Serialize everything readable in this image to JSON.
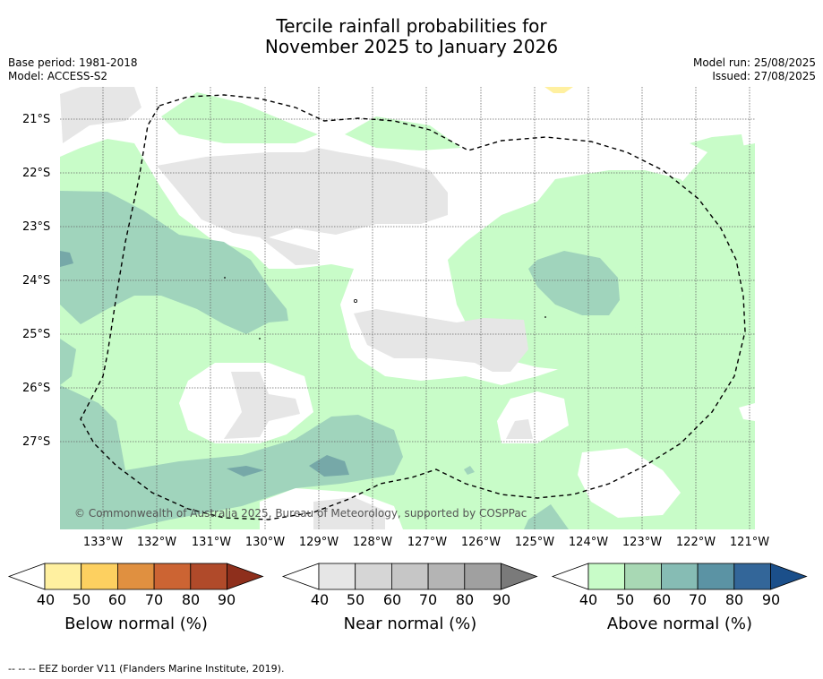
{
  "title_line1": "Tercile rainfall probabilities for",
  "title_line2": "November 2025 to January 2026",
  "meta_left": {
    "base_period": "Base period: 1981-2018",
    "model": "Model: ACCESS-S2"
  },
  "meta_right": {
    "model_run": "Model run: 25/08/2025",
    "issued": "Issued: 27/08/2025"
  },
  "latitude_labels": [
    "21°S",
    "22°S",
    "23°S",
    "24°S",
    "25°S",
    "26°S",
    "27°S"
  ],
  "longitude_labels": [
    "133°W",
    "132°W",
    "131°W",
    "130°W",
    "129°W",
    "128°W",
    "127°W",
    "126°W",
    "125°W",
    "124°W",
    "123°W",
    "122°W",
    "121°W"
  ],
  "copyright": "© Commonwealth of Australia 2025, Bureau of Meteorology, supported by COSPPac",
  "colorbars": [
    {
      "title": "Below normal (%)",
      "ticks": [
        "40",
        "50",
        "60",
        "70",
        "80",
        "90"
      ],
      "colors": [
        "#ffffff",
        "#fff0a0",
        "#fdd060",
        "#e09040",
        "#cc6433",
        "#b04a2a",
        "#8e2f1c"
      ]
    },
    {
      "title": "Near normal (%)",
      "ticks": [
        "40",
        "50",
        "60",
        "70",
        "80",
        "90"
      ],
      "colors": [
        "#ffffff",
        "#e6e6e6",
        "#d6d6d6",
        "#c6c6c6",
        "#b4b4b4",
        "#a0a0a0",
        "#7a7a7a"
      ]
    },
    {
      "title": "Above normal (%)",
      "ticks": [
        "40",
        "50",
        "60",
        "70",
        "80",
        "90"
      ],
      "colors": [
        "#ffffff",
        "#c8fcc8",
        "#a8d8b4",
        "#86bcb4",
        "#5b93a4",
        "#336699",
        "#1b4f8a"
      ]
    }
  ],
  "footnote": "--  --  -- EEZ border V11 (Flanders Marine Institute, 2019)."
}
